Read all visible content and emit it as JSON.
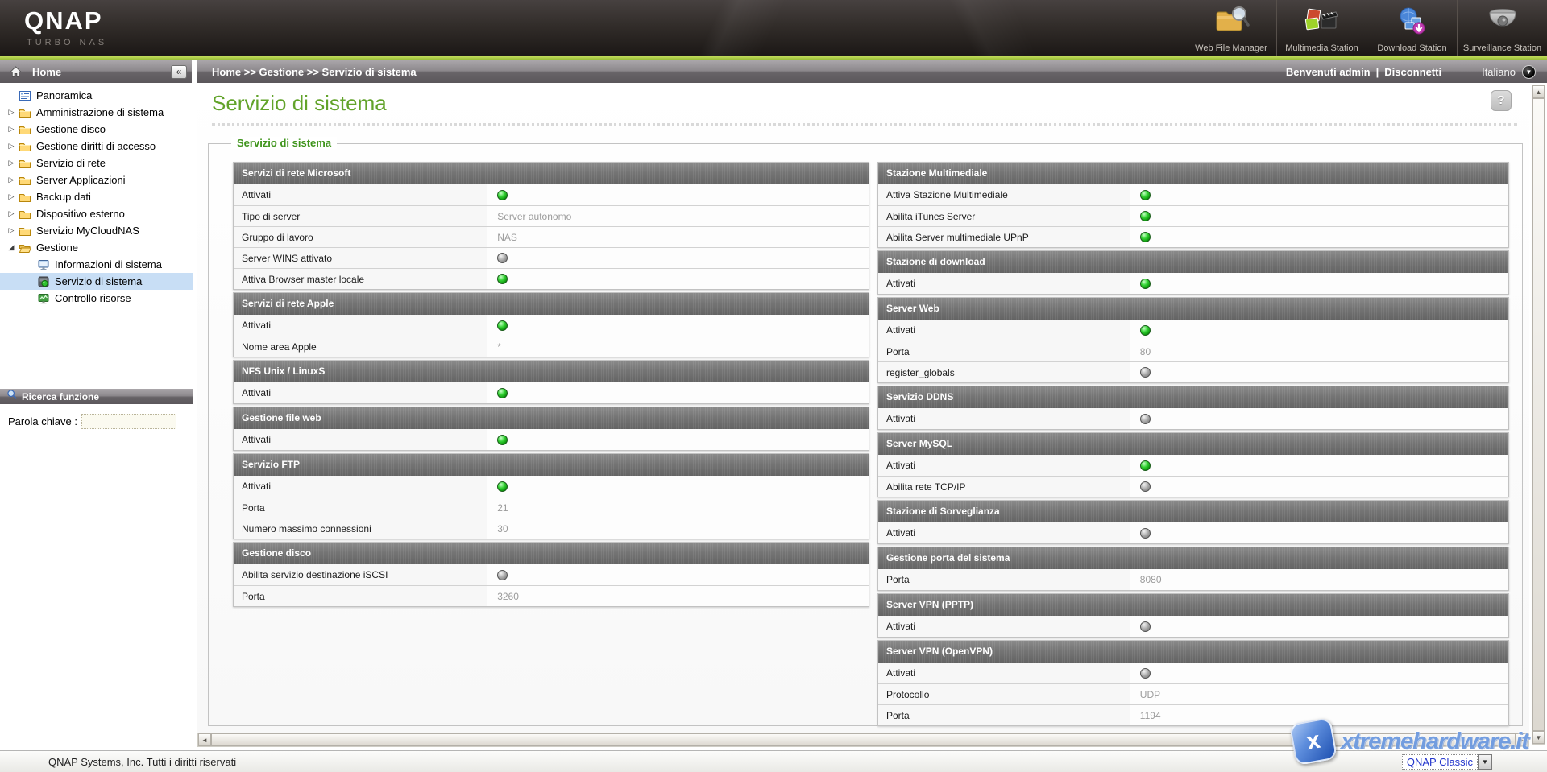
{
  "header": {
    "logo": "QNAP",
    "logo_sub": "TURBO NAS",
    "apps": [
      {
        "label": "Web File Manager",
        "icon": "web-file-manager-icon"
      },
      {
        "label": "Multimedia Station",
        "icon": "multimedia-station-icon"
      },
      {
        "label": "Download Station",
        "icon": "download-station-icon"
      },
      {
        "label": "Surveillance Station",
        "icon": "surveillance-station-icon"
      }
    ]
  },
  "breadcrumb": {
    "sidebar_title": "Home",
    "path": "Home >> Gestione >> Servizio di sistema",
    "welcome": "Benvenuti admin",
    "separator": "|",
    "logout": "Disconnetti",
    "language": "Italiano"
  },
  "sidebar": {
    "items": [
      {
        "label": "Panoramica",
        "icon": "overview-icon",
        "type": "leaf"
      },
      {
        "label": "Amministrazione di sistema",
        "icon": "folder-icon",
        "type": "folder"
      },
      {
        "label": "Gestione disco",
        "icon": "folder-icon",
        "type": "folder"
      },
      {
        "label": "Gestione diritti di accesso",
        "icon": "folder-icon",
        "type": "folder"
      },
      {
        "label": "Servizio di rete",
        "icon": "folder-icon",
        "type": "folder"
      },
      {
        "label": "Server Applicazioni",
        "icon": "folder-icon",
        "type": "folder"
      },
      {
        "label": "Backup dati",
        "icon": "folder-icon",
        "type": "folder"
      },
      {
        "label": "Dispositivo esterno",
        "icon": "folder-icon",
        "type": "folder"
      },
      {
        "label": "Servizio MyCloudNAS",
        "icon": "folder-icon",
        "type": "folder"
      },
      {
        "label": "Gestione",
        "icon": "folder-open-icon",
        "type": "folder-expanded"
      },
      {
        "label": "Informazioni di sistema",
        "icon": "system-info-icon",
        "type": "child"
      },
      {
        "label": "Servizio di sistema",
        "icon": "system-service-icon",
        "type": "child",
        "selected": true
      },
      {
        "label": "Controllo risorse",
        "icon": "resource-monitor-icon",
        "type": "child"
      }
    ],
    "search": {
      "title": "Ricerca funzione",
      "label": "Parola chiave :",
      "value": ""
    }
  },
  "main": {
    "title": "Servizio di sistema",
    "legend": "Servizio di sistema",
    "left_sections": [
      {
        "title": "Servizi di rete Microsoft",
        "rows": [
          {
            "label": "Attivati",
            "led": "on"
          },
          {
            "label": "Tipo di server",
            "value": "Server autonomo"
          },
          {
            "label": "Gruppo di lavoro",
            "value": "NAS"
          },
          {
            "label": "Server WINS attivato",
            "led": "off"
          },
          {
            "label": "Attiva Browser master locale",
            "led": "on"
          }
        ]
      },
      {
        "title": "Servizi di rete Apple",
        "rows": [
          {
            "label": "Attivati",
            "led": "on"
          },
          {
            "label": "Nome area Apple",
            "value": "*"
          }
        ]
      },
      {
        "title": "NFS Unix / LinuxS",
        "rows": [
          {
            "label": "Attivati",
            "led": "on"
          }
        ]
      },
      {
        "title": "Gestione file web",
        "rows": [
          {
            "label": "Attivati",
            "led": "on"
          }
        ]
      },
      {
        "title": "Servizio FTP",
        "rows": [
          {
            "label": "Attivati",
            "led": "on"
          },
          {
            "label": "Porta",
            "value": "21"
          },
          {
            "label": "Numero massimo connessioni",
            "value": "30"
          }
        ]
      },
      {
        "title": "Gestione disco",
        "rows": [
          {
            "label": "Abilita servizio destinazione iSCSI",
            "led": "off"
          },
          {
            "label": "Porta",
            "value": "3260"
          }
        ]
      }
    ],
    "right_sections": [
      {
        "title": "Stazione Multimediale",
        "rows": [
          {
            "label": "Attiva Stazione Multimediale",
            "led": "on"
          },
          {
            "label": "Abilita iTunes Server",
            "led": "on"
          },
          {
            "label": "Abilita Server multimediale UPnP",
            "led": "on"
          }
        ]
      },
      {
        "title": "Stazione di download",
        "rows": [
          {
            "label": "Attivati",
            "led": "on"
          }
        ]
      },
      {
        "title": "Server Web",
        "rows": [
          {
            "label": "Attivati",
            "led": "on"
          },
          {
            "label": "Porta",
            "value": "80"
          },
          {
            "label": "register_globals",
            "led": "off"
          }
        ]
      },
      {
        "title": "Servizio DDNS",
        "rows": [
          {
            "label": "Attivati",
            "led": "off"
          }
        ]
      },
      {
        "title": "Server MySQL",
        "rows": [
          {
            "label": "Attivati",
            "led": "on"
          },
          {
            "label": "Abilita rete TCP/IP",
            "led": "off"
          }
        ]
      },
      {
        "title": "Stazione di Sorveglianza",
        "rows": [
          {
            "label": "Attivati",
            "led": "off"
          }
        ]
      },
      {
        "title": "Gestione porta del sistema",
        "rows": [
          {
            "label": "Porta",
            "value": "8080"
          }
        ]
      },
      {
        "title": "Server VPN (PPTP)",
        "rows": [
          {
            "label": "Attivati",
            "led": "off"
          }
        ]
      },
      {
        "title": "Server VPN (OpenVPN)",
        "rows": [
          {
            "label": "Attivati",
            "led": "off"
          },
          {
            "label": "Protocollo",
            "value": "UDP"
          },
          {
            "label": "Porta",
            "value": "1194"
          }
        ]
      }
    ]
  },
  "footer": {
    "copyright": "QNAP Systems, Inc. Tutti i diritti riservati",
    "theme": "QNAP Classic"
  },
  "watermark": {
    "text": "xtremehardware.it",
    "badge_letter": "x"
  },
  "icons": {
    "tree_collapsed": "▷",
    "tree_expanded": "◢",
    "panel_collapse": "«",
    "help": "?",
    "lang_dropdown": "▼",
    "select_dropdown": "▼",
    "scroll_left": "◄",
    "scroll_right": "►",
    "scroll_up": "▲",
    "scroll_down": "▼"
  },
  "colors": {
    "accent_green_line": "#9cc23e",
    "title_green": "#62a32a",
    "legend_green": "#3f941c",
    "section_header_gray": "#757575",
    "led_on": "#35d435",
    "led_off": "#a9a9a9",
    "selected_tree_row": "#c8def5"
  }
}
